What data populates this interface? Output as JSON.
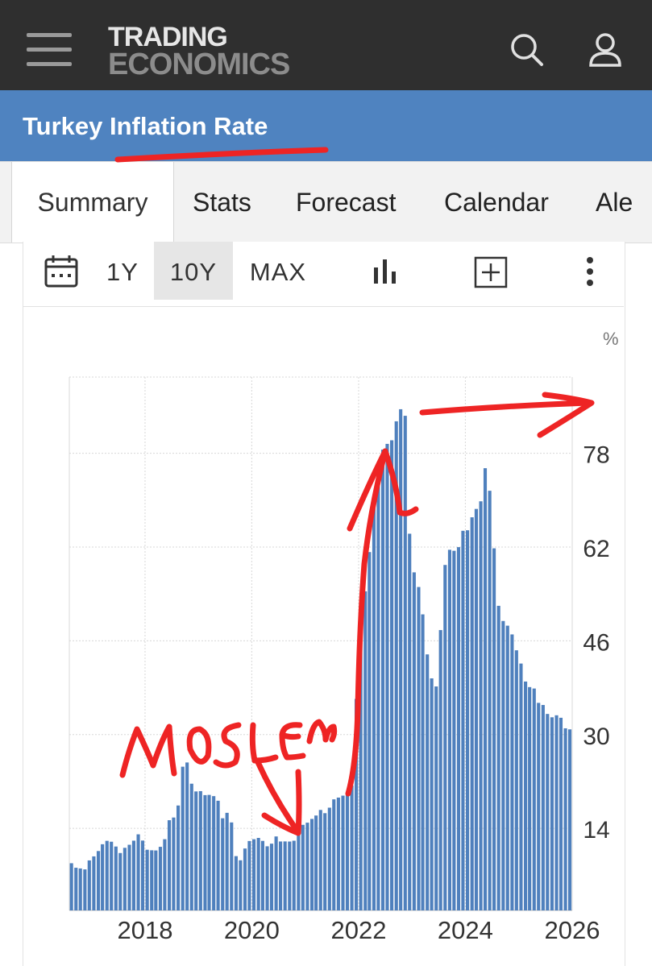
{
  "header": {
    "logo_line1": "TRADING",
    "logo_line2": "ECONOMICS",
    "menu_icon": "hamburger-menu-icon",
    "search_icon": "search-icon",
    "user_icon": "user-icon"
  },
  "page": {
    "title": "Turkey Inflation Rate"
  },
  "tabs": [
    {
      "label": "Summary",
      "active": true
    },
    {
      "label": "Stats"
    },
    {
      "label": "Forecast"
    },
    {
      "label": "Calendar"
    },
    {
      "label": "Ale"
    }
  ],
  "toolbar": {
    "calendar_icon": "calendar-icon",
    "ranges": [
      "1Y",
      "10Y",
      "MAX"
    ],
    "active_range": "10Y",
    "chart_type_icon": "bar-chart-icon",
    "add_icon": "plus-box-icon",
    "more_icon": "more-vertical-icon"
  },
  "annotation": {
    "handwritten_text": "MOSLEM"
  },
  "colors": {
    "bar": "#4f80bd",
    "title_bar": "#4f83c0",
    "top_bar": "#2f2f2f",
    "annotation": "#ee2424"
  },
  "chart_data": {
    "type": "bar",
    "unit": "%",
    "x_tick_labels": [
      "2018",
      "2020",
      "2022",
      "2024",
      "2026"
    ],
    "y_tick_labels": [
      "14",
      "30",
      "46",
      "62",
      "78"
    ],
    "ylim": [
      0,
      91
    ],
    "x": [
      "2016-08",
      "2016-09",
      "2016-10",
      "2016-11",
      "2016-12",
      "2017-01",
      "2017-02",
      "2017-03",
      "2017-04",
      "2017-05",
      "2017-06",
      "2017-07",
      "2017-08",
      "2017-09",
      "2017-10",
      "2017-11",
      "2017-12",
      "2018-01",
      "2018-02",
      "2018-03",
      "2018-04",
      "2018-05",
      "2018-06",
      "2018-07",
      "2018-08",
      "2018-09",
      "2018-10",
      "2018-11",
      "2018-12",
      "2019-01",
      "2019-02",
      "2019-03",
      "2019-04",
      "2019-05",
      "2019-06",
      "2019-07",
      "2019-08",
      "2019-09",
      "2019-10",
      "2019-11",
      "2019-12",
      "2020-01",
      "2020-02",
      "2020-03",
      "2020-04",
      "2020-05",
      "2020-06",
      "2020-07",
      "2020-08",
      "2020-09",
      "2020-10",
      "2020-11",
      "2020-12",
      "2021-01",
      "2021-02",
      "2021-03",
      "2021-04",
      "2021-05",
      "2021-06",
      "2021-07",
      "2021-08",
      "2021-09",
      "2021-10",
      "2021-11",
      "2021-12",
      "2022-01",
      "2022-02",
      "2022-03",
      "2022-04",
      "2022-05",
      "2022-06",
      "2022-07",
      "2022-08",
      "2022-09",
      "2022-10",
      "2022-11",
      "2022-12",
      "2023-01",
      "2023-02",
      "2023-03",
      "2023-04",
      "2023-05",
      "2023-06",
      "2023-07",
      "2023-08",
      "2023-09",
      "2023-10",
      "2023-11",
      "2023-12",
      "2024-01",
      "2024-02",
      "2024-03",
      "2024-04",
      "2024-05",
      "2024-06",
      "2024-07",
      "2024-08",
      "2024-09",
      "2024-10",
      "2024-11",
      "2024-12",
      "2025-01",
      "2025-02",
      "2025-03",
      "2025-04",
      "2025-05",
      "2025-06",
      "2025-07",
      "2025-08",
      "2025-09",
      "2025-10",
      "2025-11",
      "2025-12"
    ],
    "values": [
      8.05,
      7.28,
      7.16,
      7.0,
      8.53,
      9.22,
      10.13,
      11.29,
      11.87,
      11.72,
      10.9,
      9.79,
      10.68,
      11.2,
      11.9,
      12.98,
      11.92,
      10.35,
      10.26,
      10.23,
      10.85,
      12.15,
      15.39,
      15.85,
      17.9,
      24.52,
      25.24,
      21.62,
      20.3,
      20.35,
      19.67,
      19.71,
      19.5,
      18.71,
      15.72,
      16.65,
      15.01,
      9.26,
      8.55,
      10.56,
      11.84,
      12.15,
      12.37,
      11.86,
      10.94,
      11.39,
      12.62,
      11.76,
      11.77,
      11.75,
      11.89,
      14.03,
      14.6,
      14.97,
      15.61,
      16.19,
      17.14,
      16.59,
      17.53,
      18.95,
      19.25,
      19.58,
      19.89,
      21.31,
      36.08,
      48.69,
      54.44,
      61.14,
      69.97,
      73.5,
      78.62,
      79.6,
      80.21,
      83.45,
      85.51,
      84.39,
      64.27,
      57.68,
      55.18,
      50.51,
      43.68,
      39.59,
      38.21,
      47.83,
      58.94,
      61.53,
      61.36,
      61.98,
      64.77,
      64.86,
      67.07,
      68.5,
      69.8,
      75.45,
      71.6,
      61.78,
      51.97,
      49.38,
      48.58,
      47.09,
      44.38,
      42.12,
      39.05,
      38.1,
      37.86,
      35.41,
      35.05,
      33.52,
      32.95,
      33.29,
      32.87,
      31.07,
      30.89
    ]
  }
}
